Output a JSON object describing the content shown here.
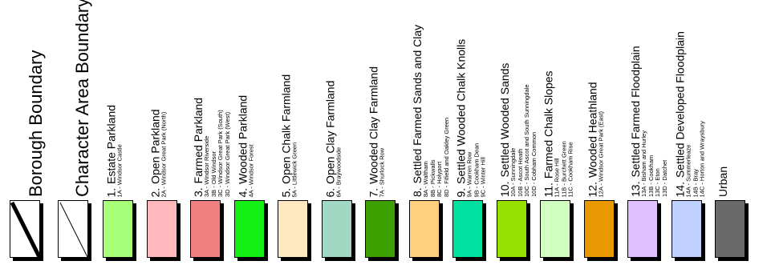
{
  "borough_boundary": {
    "label": "Borough Boundary"
  },
  "character_area_boundary": {
    "label": "Character Area Boundary"
  },
  "categories": [
    {
      "num": "1.",
      "name": "Estate Parkland",
      "subs": [
        "1A - Windsor Castle"
      ],
      "color": "#A8FF78"
    },
    {
      "num": "2.",
      "name": "Open Parkland",
      "subs": [
        "2A - Windsor Great Park (North)"
      ],
      "color": "#FFB8BC"
    },
    {
      "num": "3.",
      "name": "Farmed Parkland",
      "subs": [
        "3A - Windsor Riverside",
        "3B - Old Windsor",
        "3C - Windsor Great Park (South)",
        "3D - Windsor Great Park (West)"
      ],
      "color": "#F08080"
    },
    {
      "num": "4.",
      "name": "Wooded Parkland",
      "subs": [
        "4A - Windsor Forest"
      ],
      "color": "#14F014"
    },
    {
      "num": "5.",
      "name": "Open Chalk Farmland",
      "subs": [
        "5A - Littlewick Green"
      ],
      "color": "#FFE8C0"
    },
    {
      "num": "6.",
      "name": "Open Clay Farmland",
      "subs": [
        "6A - Braywoodside"
      ],
      "color": "#A0D8C4"
    },
    {
      "num": "7.",
      "name": "Wooded Clay Farmland",
      "subs": [
        "7A - Shurlock Row"
      ],
      "color": "#3CA000"
    },
    {
      "num": "8.",
      "name": "Settled Farmed Sands and Clay",
      "subs": [
        "8A - Waltham",
        "8B - Pickwalls",
        "8C - Holyport",
        "8D - Fifield and Oakley Green"
      ],
      "color": "#FFD080"
    },
    {
      "num": "9.",
      "name": "Settled Wooded Chalk Knolls",
      "subs": [
        "9A - Warren Row",
        "9B - Cookham Dean",
        "9C - Winter Hill"
      ],
      "color": "#00E0A0"
    },
    {
      "num": "10.",
      "name": "Settled Wooded Sands",
      "subs": [
        "10A - Sunningdale",
        "10B - Ascot Heath",
        "10C - South Ascot and South Sunningdale",
        "10D - Cobham Common"
      ],
      "color": "#98E000"
    },
    {
      "num": "11.",
      "name": "Farmed Chalk Slopes",
      "subs": [
        "11A - Rose Hill",
        "11B - Burchett Green",
        "11C - Cookham Rise"
      ],
      "color": "#D0FFC0"
    },
    {
      "num": "12.",
      "name": "Wooded Heathland",
      "subs": [
        "12A - Windsor Great Park (East)"
      ],
      "color": "#E89800"
    },
    {
      "num": "13.",
      "name": "Settled Farmed Floodplain",
      "subs": [
        "13A - Bisham and Hurley",
        "13B - Cookham",
        "13C - Eton",
        "13D - Datchet"
      ],
      "color": "#E0C0FF"
    },
    {
      "num": "14.",
      "name": "Settled Developed Floodplain",
      "subs": [
        "14A - Summerleaze",
        "14B - Bray",
        "14C - Horton and Wraysbury"
      ],
      "color": "#C0D0FF"
    },
    {
      "num": "",
      "name": "Urban",
      "subs": [],
      "color": "#6A6A6A"
    }
  ]
}
